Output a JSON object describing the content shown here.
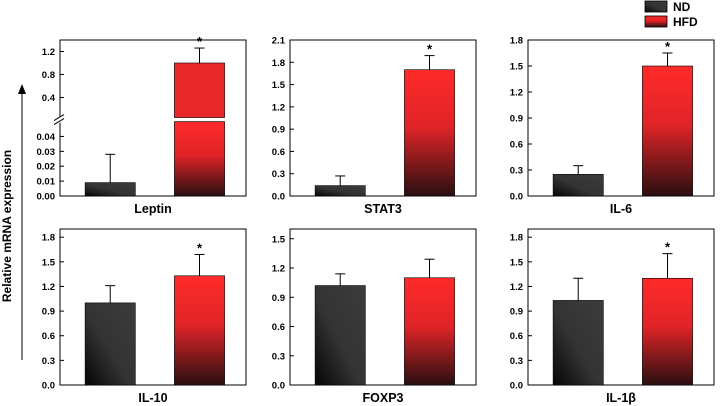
{
  "figure": {
    "y_axis_label": "Relative mRNA expression",
    "legend": [
      {
        "name": "ND",
        "color": "#3a3a3a"
      },
      {
        "name": "HFD",
        "color": "#e8282b"
      }
    ],
    "significance_marker": "*"
  },
  "chart_data": [
    {
      "type": "bar",
      "title": "Leptin",
      "categories": [
        "ND",
        "HFD"
      ],
      "values": [
        0.009,
        1.0
      ],
      "errors": [
        0.019,
        0.26
      ],
      "significant": [
        false,
        true
      ],
      "axis_break": true,
      "ylim_lower": [
        0,
        0.05
      ],
      "ylim_upper": [
        0.05,
        1.4
      ],
      "yticks_lower": [
        0.0,
        0.01,
        0.02,
        0.03,
        0.04
      ],
      "yticks_upper": [
        0.4,
        0.8,
        1.2
      ],
      "tick_labels_lower": [
        "0.00",
        "0.01",
        "0.02",
        "0.03",
        "0.04"
      ],
      "tick_labels_upper": [
        "0.4",
        "0.8",
        "1.2"
      ]
    },
    {
      "type": "bar",
      "title": "STAT3",
      "categories": [
        "ND",
        "HFD"
      ],
      "values": [
        0.14,
        1.7
      ],
      "errors": [
        0.13,
        0.19
      ],
      "significant": [
        false,
        true
      ],
      "ylim": [
        0,
        2.1
      ],
      "yticks": [
        0.0,
        0.3,
        0.6,
        0.9,
        1.2,
        1.5,
        1.8,
        2.1
      ],
      "tick_labels": [
        "0.0",
        "0.3",
        "0.6",
        "0.9",
        "1.2",
        "1.5",
        "1.8",
        "2.1"
      ]
    },
    {
      "type": "bar",
      "title": "IL-6",
      "categories": [
        "ND",
        "HFD"
      ],
      "values": [
        0.25,
        1.5
      ],
      "errors": [
        0.1,
        0.15
      ],
      "significant": [
        false,
        true
      ],
      "ylim": [
        0,
        1.8
      ],
      "yticks": [
        0.0,
        0.3,
        0.6,
        0.9,
        1.2,
        1.5,
        1.8
      ],
      "tick_labels": [
        "0.0",
        "0.3",
        "0.6",
        "0.9",
        "1.2",
        "1.5",
        "1.8"
      ]
    },
    {
      "type": "bar",
      "title": "IL-10",
      "categories": [
        "ND",
        "HFD"
      ],
      "values": [
        1.0,
        1.33
      ],
      "errors": [
        0.21,
        0.26
      ],
      "significant": [
        false,
        true
      ],
      "ylim": [
        0,
        1.9
      ],
      "yticks": [
        0.0,
        0.3,
        0.6,
        0.9,
        1.2,
        1.5,
        1.8
      ],
      "tick_labels": [
        "0.0",
        "0.3",
        "0.6",
        "0.9",
        "1.2",
        "1.5",
        "1.8"
      ]
    },
    {
      "type": "bar",
      "title": "FOXP3",
      "categories": [
        "ND",
        "HFD"
      ],
      "values": [
        1.02,
        1.1
      ],
      "errors": [
        0.12,
        0.19
      ],
      "significant": [
        false,
        false
      ],
      "ylim": [
        0,
        1.6
      ],
      "yticks": [
        0.0,
        0.3,
        0.6,
        0.9,
        1.2,
        1.5
      ],
      "tick_labels": [
        "0.0",
        "0.3",
        "0.6",
        "0.9",
        "1.2",
        "1.5"
      ]
    },
    {
      "type": "bar",
      "title": "IL-1β",
      "categories": [
        "ND",
        "HFD"
      ],
      "values": [
        1.03,
        1.3
      ],
      "errors": [
        0.27,
        0.3
      ],
      "significant": [
        false,
        true
      ],
      "ylim": [
        0,
        1.9
      ],
      "yticks": [
        0.0,
        0.3,
        0.6,
        0.9,
        1.2,
        1.5,
        1.8
      ],
      "tick_labels": [
        "0.0",
        "0.3",
        "0.6",
        "0.9",
        "1.2",
        "1.5",
        "1.8"
      ]
    }
  ]
}
